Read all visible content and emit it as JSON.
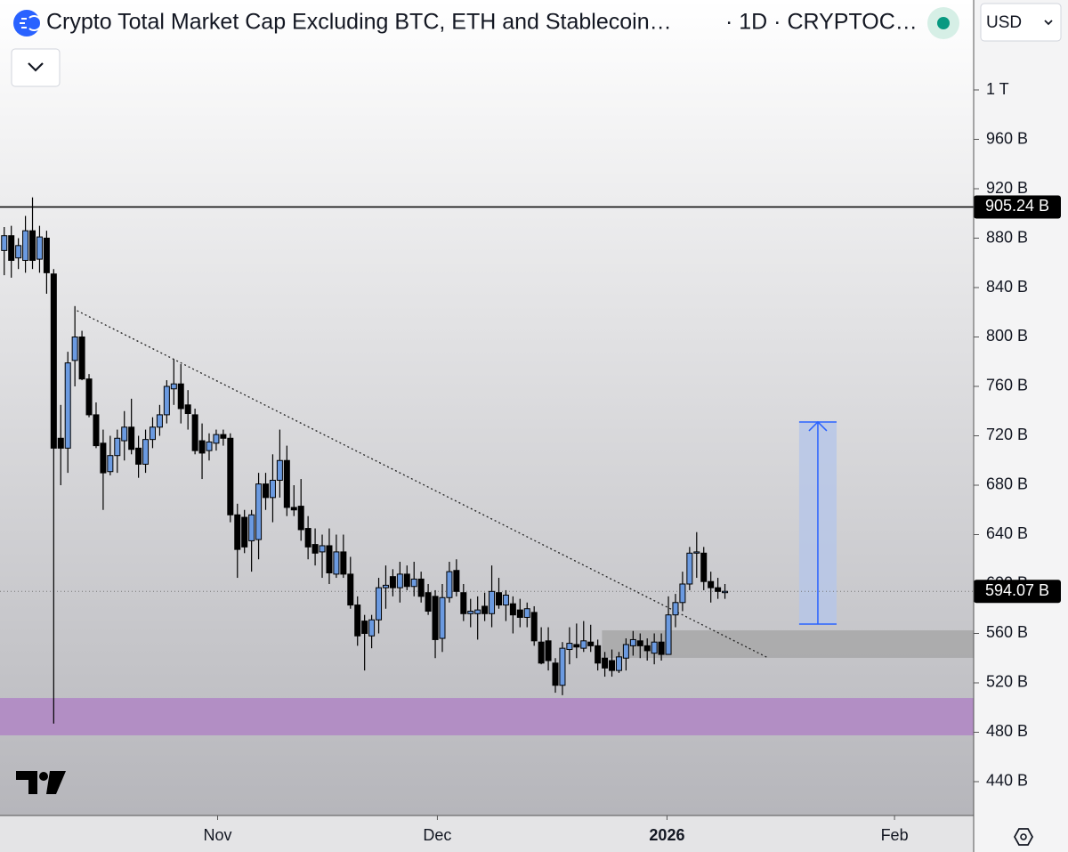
{
  "chart_data": {
    "type": "candlestick",
    "title": "Crypto Total Market Cap Excluding BTC, ETH and Stablecoin…",
    "subtitle": "· 1D · CRYPTOC…",
    "currency": "USD",
    "categories": [
      null,
      null,
      null,
      null,
      null,
      null,
      null,
      null,
      null,
      null,
      null,
      null,
      null,
      null,
      null,
      null,
      null,
      null,
      null,
      null,
      null,
      null,
      null,
      null,
      null,
      null,
      null,
      null,
      null,
      null,
      null,
      null,
      null,
      null,
      null,
      null,
      null,
      null,
      null,
      null,
      null,
      null,
      null,
      null,
      null,
      null,
      null,
      null,
      null,
      null,
      null,
      null,
      null,
      null,
      null,
      null,
      null,
      null,
      null,
      null,
      null,
      null,
      null,
      null,
      null,
      null,
      null,
      null,
      null,
      null,
      null,
      null,
      null,
      null,
      null,
      null,
      null,
      null,
      null,
      null,
      null,
      null,
      null,
      null,
      null,
      null,
      null,
      null,
      null,
      null,
      null,
      null,
      null,
      null,
      null,
      null,
      null,
      null,
      null,
      null,
      null,
      null,
      null
    ],
    "open": [
      870,
      882,
      864,
      862,
      886,
      863,
      880,
      851,
      718,
      710,
      781,
      800,
      766,
      737,
      714,
      691,
      704,
      716,
      727,
      710,
      697,
      717,
      727,
      737,
      758,
      762,
      745,
      737,
      716,
      708,
      714,
      721,
      718,
      656,
      654,
      635,
      636,
      681,
      670,
      684,
      700,
      662,
      663,
      645,
      632,
      626,
      631,
      608,
      626,
      608,
      583,
      570,
      558,
      571,
      597,
      606,
      597,
      608,
      598,
      604,
      593,
      590,
      556,
      589,
      611,
      593,
      576,
      576,
      582,
      576,
      593,
      583,
      584,
      579,
      573,
      577,
      553,
      554,
      536,
      518,
      547,
      551,
      548,
      553,
      550,
      540,
      538,
      530,
      540,
      550,
      554,
      550,
      544,
      553,
      543,
      575,
      585,
      600,
      625,
      625,
      602,
      597,
      593
    ],
    "high": [
      889,
      890,
      880,
      898,
      913,
      890,
      886,
      855,
      745,
      788,
      825,
      805,
      770,
      747,
      725,
      720,
      725,
      740,
      750,
      720,
      725,
      735,
      745,
      765,
      782,
      778,
      757,
      742,
      730,
      722,
      725,
      725,
      722,
      665,
      660,
      660,
      690,
      690,
      705,
      725,
      712,
      680,
      685,
      655,
      645,
      640,
      645,
      640,
      640,
      622,
      590,
      575,
      575,
      605,
      615,
      612,
      618,
      615,
      618,
      610,
      600,
      595,
      600,
      618,
      620,
      600,
      588,
      590,
      593,
      615,
      605,
      595,
      590,
      588,
      585,
      582,
      565,
      565,
      540,
      553,
      565,
      568,
      570,
      567,
      555,
      545,
      547,
      545,
      556,
      562,
      560,
      556,
      560,
      560,
      590,
      592,
      610,
      630,
      642,
      630,
      610,
      605,
      600
    ],
    "low": [
      850,
      848,
      855,
      852,
      855,
      852,
      835,
      487,
      680,
      690,
      760,
      765,
      735,
      710,
      660,
      688,
      690,
      700,
      705,
      686,
      690,
      710,
      720,
      730,
      745,
      730,
      725,
      705,
      685,
      700,
      708,
      712,
      650,
      605,
      625,
      610,
      620,
      660,
      650,
      670,
      655,
      655,
      635,
      620,
      615,
      605,
      600,
      605,
      605,
      580,
      550,
      530,
      548,
      560,
      580,
      590,
      585,
      595,
      590,
      585,
      575,
      540,
      545,
      585,
      590,
      570,
      565,
      555,
      570,
      565,
      580,
      570,
      560,
      565,
      565,
      550,
      535,
      530,
      512,
      510,
      535,
      540,
      545,
      545,
      530,
      525,
      525,
      528,
      530,
      542,
      540,
      538,
      535,
      538,
      543,
      565,
      578,
      595,
      605,
      595,
      585,
      588,
      588
    ],
    "close": [
      882,
      862,
      874,
      886,
      862,
      881,
      852,
      710,
      710,
      779,
      800,
      766,
      737,
      712,
      690,
      704,
      718,
      727,
      709,
      697,
      717,
      727,
      737,
      760,
      762,
      742,
      738,
      708,
      706,
      715,
      721,
      718,
      656,
      628,
      630,
      656,
      681,
      670,
      684,
      700,
      662,
      660,
      644,
      630,
      625,
      631,
      609,
      626,
      608,
      583,
      558,
      560,
      571,
      597,
      599,
      597,
      608,
      598,
      604,
      590,
      578,
      555,
      589,
      610,
      594,
      576,
      578,
      579,
      576,
      594,
      583,
      591,
      575,
      573,
      580,
      554,
      536,
      538,
      518,
      548,
      552,
      549,
      554,
      550,
      536,
      532,
      530,
      541,
      551,
      555,
      550,
      546,
      553,
      543,
      575,
      585,
      600,
      625,
      626,
      602,
      597,
      594,
      594.07
    ],
    "up_color": "#6b9ae0",
    "down_color": "#000000",
    "xlim": [
      -0.6,
      137.2
    ],
    "xticks": [
      {
        "value": 30.2,
        "label": "Nov"
      },
      {
        "value": 61.3,
        "label": "Dec"
      },
      {
        "value": 93.8,
        "label": "2026"
      },
      {
        "value": 126,
        "label": "Feb"
      }
    ],
    "ylim": [
      412.6,
      1072.8
    ],
    "yticks": [
      {
        "value": 440,
        "label": "440 B"
      },
      {
        "value": 480,
        "label": "480 B"
      },
      {
        "value": 520,
        "label": "520 B"
      },
      {
        "value": 560,
        "label": "560 B"
      },
      {
        "value": 600,
        "label": "600 B"
      },
      {
        "value": 640,
        "label": "640 B"
      },
      {
        "value": 680,
        "label": "680 B"
      },
      {
        "value": 720,
        "label": "720 B"
      },
      {
        "value": 760,
        "label": "760 B"
      },
      {
        "value": 800,
        "label": "800 B"
      },
      {
        "value": 840,
        "label": "840 B"
      },
      {
        "value": 880,
        "label": "880 B"
      },
      {
        "value": 920,
        "label": "920 B"
      },
      {
        "value": 960,
        "label": "960 B"
      },
      {
        "value": 1000,
        "label": "1 T"
      }
    ],
    "price_lines": [
      {
        "value": 905.24,
        "label": "905.24 B",
        "style": "solid"
      },
      {
        "value": 594.07,
        "label": "594.07 B",
        "style": "dotted"
      }
    ],
    "zones": [
      {
        "x": [
          -0.6,
          137.2
        ],
        "y": [
          477.5,
          507.7
        ],
        "color": "#b088c4"
      },
      {
        "x": [
          84.6,
          137.2
        ],
        "y": [
          540.2,
          562.5
        ],
        "color": "#a8a8aa"
      },
      {
        "x": [
          112.5,
          117.8
        ],
        "y": [
          567.6,
          731.2
        ],
        "color": "#b5c5e8"
      }
    ],
    "trend_line": {
      "x": [
        10.3,
        107.9
      ],
      "y": [
        821.3,
        540.8
      ]
    }
  }
}
